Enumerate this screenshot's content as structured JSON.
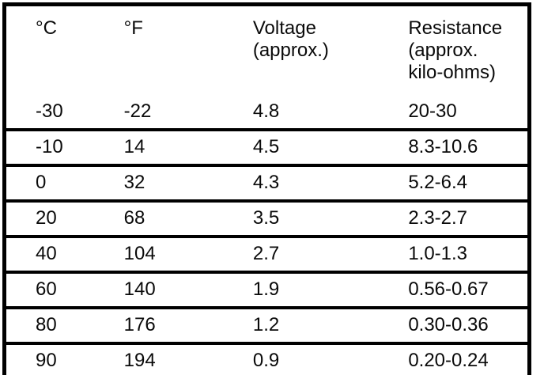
{
  "table": {
    "headers": {
      "celsius": "°C",
      "fahrenheit": "°F",
      "voltage": "Voltage\n(approx.)",
      "resistance": "Resistance\n(approx.\nkilo-ohms)"
    },
    "rows": [
      [
        "-30",
        "-22",
        "4.8",
        "20-30"
      ],
      [
        "-10",
        "14",
        "4.5",
        "8.3-10.6"
      ],
      [
        "0",
        "32",
        "4.3",
        "5.2-6.4"
      ],
      [
        "20",
        "68",
        "3.5",
        "2.3-2.7"
      ],
      [
        "40",
        "104",
        "2.7",
        "1.0-1.3"
      ],
      [
        "60",
        "140",
        "1.9",
        "0.56-0.67"
      ],
      [
        "80",
        "176",
        "1.2",
        "0.30-0.36"
      ],
      [
        "90",
        "194",
        "0.9",
        "0.20-0.24"
      ]
    ]
  },
  "colors": {
    "border": "#000000",
    "background": "#ffffff",
    "text": "#0a0a0a"
  }
}
